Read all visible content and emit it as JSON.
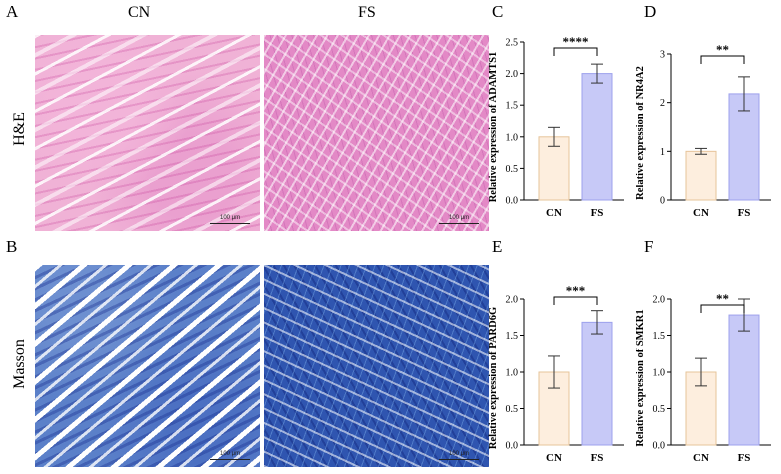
{
  "panels": {
    "A": "A",
    "B": "B",
    "C": "C",
    "D": "D",
    "E": "E",
    "F": "F"
  },
  "histology": {
    "columns": [
      "CN",
      "FS"
    ],
    "rows": [
      "H&E",
      "Masson"
    ],
    "scale_label": "100 μm"
  },
  "colors": {
    "cn_fill": "#fdeede",
    "cn_stroke": "#e6c49a",
    "fs_fill": "#c7c9f7",
    "fs_stroke": "#9da1ec",
    "he_stain": "#e8a0cf",
    "masson_stain": "#3a63b8"
  },
  "chart_data": [
    {
      "panel": "C",
      "type": "bar",
      "categories": [
        "CN",
        "FS"
      ],
      "values": [
        1.0,
        2.0
      ],
      "errors": [
        0.15,
        0.15
      ],
      "ylabel": "Relative expression of ADAMTS1",
      "ylim": [
        0,
        2.5
      ],
      "yticks": [
        "0.0",
        "0.5",
        "1.0",
        "1.5",
        "2.0",
        "2.5"
      ],
      "significance": "****"
    },
    {
      "panel": "D",
      "type": "bar",
      "categories": [
        "CN",
        "FS"
      ],
      "values": [
        1.0,
        2.18
      ],
      "errors": [
        0.06,
        0.35
      ],
      "ylabel": "Relative expression of NR4A2",
      "ylim": [
        0,
        3
      ],
      "yticks": [
        "0",
        "1",
        "2",
        "3"
      ],
      "significance": "**"
    },
    {
      "panel": "E",
      "type": "bar",
      "categories": [
        "CN",
        "FS"
      ],
      "values": [
        1.0,
        1.68
      ],
      "errors": [
        0.22,
        0.16
      ],
      "ylabel": "Relative expression of PARD6G",
      "ylim": [
        0,
        2.0
      ],
      "yticks": [
        "0.0",
        "0.5",
        "1.0",
        "1.5",
        "2.0"
      ],
      "significance": "***"
    },
    {
      "panel": "F",
      "type": "bar",
      "categories": [
        "CN",
        "FS"
      ],
      "values": [
        1.0,
        1.78
      ],
      "errors": [
        0.19,
        0.22
      ],
      "ylabel": "Relative expression of SMKR1",
      "ylim": [
        0,
        2.0
      ],
      "yticks": [
        "0.0",
        "0.5",
        "1.0",
        "1.5",
        "2.0"
      ],
      "significance": "**"
    }
  ]
}
